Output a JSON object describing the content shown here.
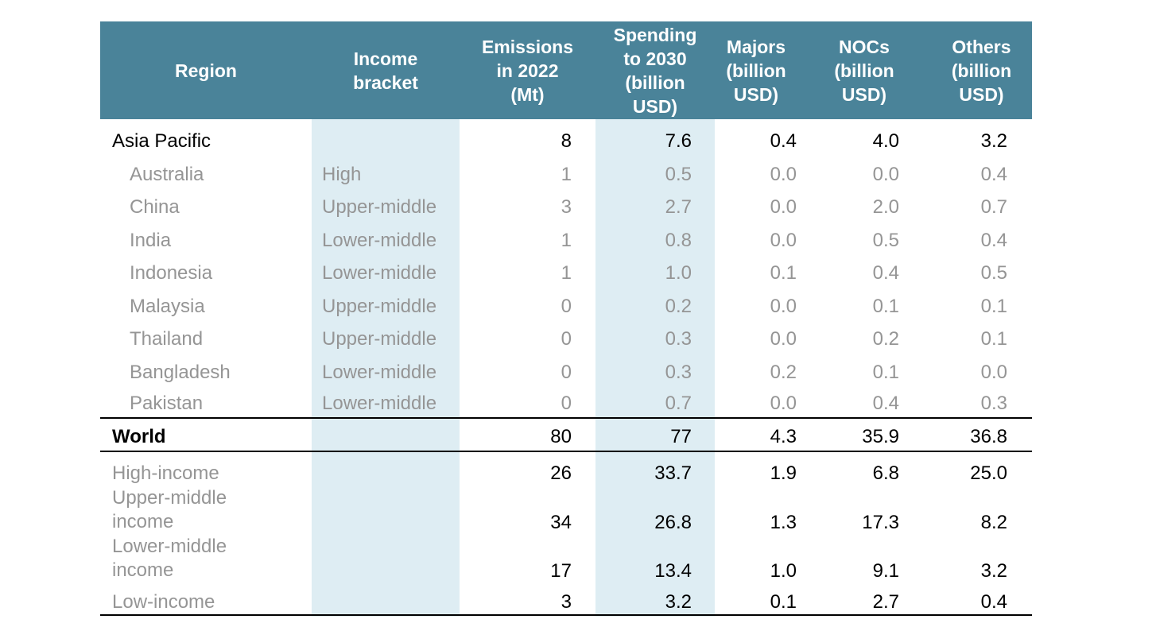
{
  "headers": {
    "region": "Region",
    "income": "Income\nbracket",
    "emissions": "Emissions\nin 2022\n(Mt)",
    "spending": "Spending\nto 2030\n(billion\nUSD)",
    "majors": "Majors\n(billion\nUSD)",
    "nocs": "NOCs\n(billion\nUSD)",
    "others": "Others\n(billion\nUSD)"
  },
  "asia_pacific": {
    "label": "Asia Pacific",
    "income": "",
    "emissions": "8",
    "spending": "7.6",
    "majors": "0.4",
    "nocs": "4.0",
    "others": "3.2"
  },
  "countries": [
    {
      "label": "Australia",
      "income": "High",
      "emissions": "1",
      "spending": "0.5",
      "majors": "0.0",
      "nocs": "0.0",
      "others": "0.4"
    },
    {
      "label": "China",
      "income": "Upper-middle",
      "emissions": "3",
      "spending": "2.7",
      "majors": "0.0",
      "nocs": "2.0",
      "others": "0.7"
    },
    {
      "label": "India",
      "income": "Lower-middle",
      "emissions": "1",
      "spending": "0.8",
      "majors": "0.0",
      "nocs": "0.5",
      "others": "0.4"
    },
    {
      "label": "Indonesia",
      "income": "Lower-middle",
      "emissions": "1",
      "spending": "1.0",
      "majors": "0.1",
      "nocs": "0.4",
      "others": "0.5"
    },
    {
      "label": "Malaysia",
      "income": "Upper-middle",
      "emissions": "0",
      "spending": "0.2",
      "majors": "0.0",
      "nocs": "0.1",
      "others": "0.1"
    },
    {
      "label": "Thailand",
      "income": "Upper-middle",
      "emissions": "0",
      "spending": "0.3",
      "majors": "0.0",
      "nocs": "0.2",
      "others": "0.1"
    },
    {
      "label": "Bangladesh",
      "income": "Lower-middle",
      "emissions": "0",
      "spending": "0.3",
      "majors": "0.2",
      "nocs": "0.1",
      "others": "0.0"
    },
    {
      "label": "Pakistan",
      "income": "Lower-middle",
      "emissions": "0",
      "spending": "0.7",
      "majors": "0.0",
      "nocs": "0.4",
      "others": "0.3"
    }
  ],
  "world": {
    "label": "World",
    "income": "",
    "emissions": "80",
    "spending": "77",
    "majors": "4.3",
    "nocs": "35.9",
    "others": "36.8"
  },
  "income_groups": [
    {
      "label": "High-income",
      "emissions": "26",
      "spending": "33.7",
      "majors": "1.9",
      "nocs": "6.8",
      "others": "25.0"
    },
    {
      "label": "Upper-middle income",
      "emissions": "34",
      "spending": "26.8",
      "majors": "1.3",
      "nocs": "17.3",
      "others": "8.2"
    },
    {
      "label": "Lower-middle income",
      "emissions": "17",
      "spending": "13.4",
      "majors": "1.0",
      "nocs": "9.1",
      "others": "3.2"
    },
    {
      "label": "Low-income",
      "emissions": "3",
      "spending": "3.2",
      "majors": "0.1",
      "nocs": "2.7",
      "others": "0.4"
    }
  ],
  "colors": {
    "header_bg": "#4a8399",
    "column_shade": "#deedf3",
    "muted_text": "#959595"
  }
}
